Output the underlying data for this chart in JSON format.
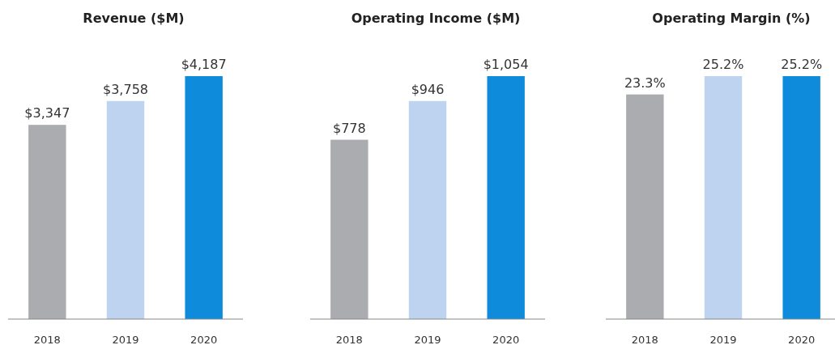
{
  "chart_data": [
    {
      "type": "bar",
      "title": "Revenue ($M)",
      "categories": [
        "2018",
        "2019",
        "2020"
      ],
      "values": [
        3347,
        3758,
        4187
      ],
      "colors": [
        "#abacb0",
        "#bed3f0",
        "#0e8cdb"
      ],
      "value_labels": [
        "$3,347",
        "$3,758",
        "$4,187"
      ]
    },
    {
      "type": "bar",
      "title": "Operating Income ($M)",
      "categories": [
        "2018",
        "2019",
        "2020"
      ],
      "values": [
        778,
        946,
        1054
      ],
      "colors": [
        "#abacb0",
        "#bed3f0",
        "#0e8cdb"
      ],
      "value_labels": [
        "$778",
        "$946",
        "$1,054"
      ]
    },
    {
      "type": "bar",
      "title": "Operating Margin (%)",
      "categories": [
        "2018",
        "2019",
        "2020"
      ],
      "values": [
        23.3,
        25.2,
        25.2
      ],
      "colors": [
        "#abacb0",
        "#bed3f0",
        "#0e8cdb"
      ],
      "value_labels": [
        "23.3%",
        "25.2%",
        "25.2%"
      ]
    }
  ]
}
